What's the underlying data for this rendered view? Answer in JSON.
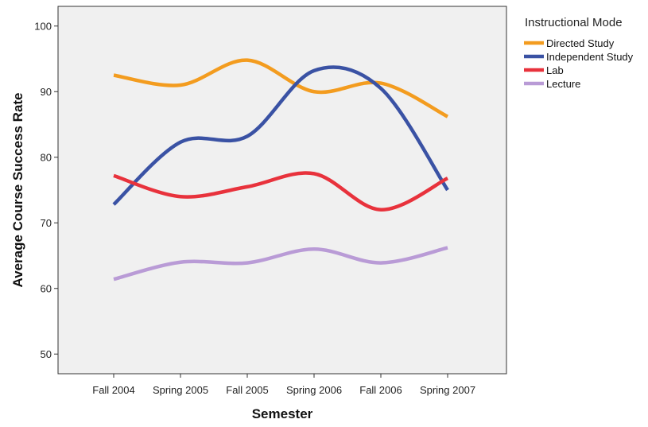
{
  "chart_data": {
    "type": "line",
    "xlabel": "Semester",
    "ylabel": "Average Course Success Rate",
    "categories": [
      "Fall 2004",
      "Spring 2005",
      "Fall 2005",
      "Spring 2006",
      "Fall 2006",
      "Spring 2007"
    ],
    "ylim": [
      47,
      103
    ],
    "yticks": [
      50,
      60,
      70,
      80,
      90,
      100
    ],
    "grid": false,
    "legend": {
      "title": "Instructional Mode",
      "position": "right"
    },
    "series": [
      {
        "name": "Directed Study",
        "color": "#f39c1f",
        "values": [
          92.5,
          91.0,
          94.8,
          90.0,
          91.3,
          86.2
        ]
      },
      {
        "name": "Independent Study",
        "color": "#3a52a4",
        "values": [
          72.8,
          82.3,
          83.2,
          93.2,
          90.5,
          75.0
        ]
      },
      {
        "name": "Lab",
        "color": "#e8323c",
        "values": [
          77.2,
          74.0,
          75.5,
          77.5,
          72.0,
          76.8
        ]
      },
      {
        "name": "Lecture",
        "color": "#b99bd6",
        "values": [
          61.4,
          64.0,
          63.9,
          66.0,
          63.9,
          66.2
        ]
      }
    ]
  }
}
